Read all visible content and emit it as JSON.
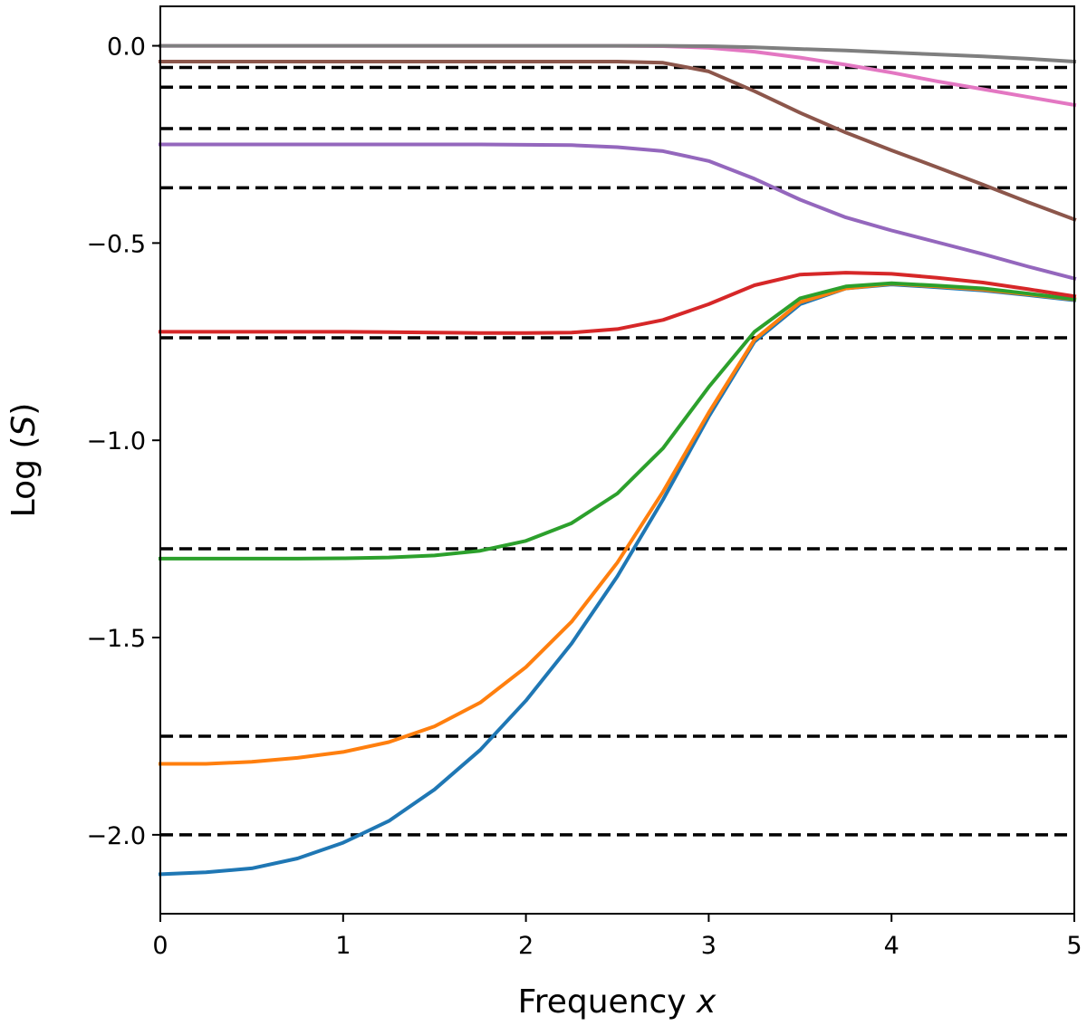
{
  "chart_data": {
    "type": "line",
    "title": "",
    "xlabel": {
      "text": "Frequency ",
      "var": "x"
    },
    "ylabel": {
      "text": "Log (",
      "var": "S",
      "close": ")"
    },
    "xlim": [
      0,
      5
    ],
    "ylim": [
      -2.2,
      0.1
    ],
    "xticks": [
      0,
      1,
      2,
      3,
      4,
      5
    ],
    "xtick_labels": [
      "0",
      "1",
      "2",
      "3",
      "4",
      "5"
    ],
    "yticks": [
      0.0,
      -0.5,
      -1.0,
      -1.5,
      -2.0
    ],
    "ytick_labels": [
      "0.0",
      "−0.5",
      "−1.0",
      "−1.5",
      "−2.0"
    ],
    "grid": false,
    "x": [
      0,
      0.25,
      0.5,
      0.75,
      1.0,
      1.25,
      1.5,
      1.75,
      2.0,
      2.25,
      2.5,
      2.75,
      3.0,
      3.25,
      3.5,
      3.75,
      4.0,
      4.25,
      4.5,
      4.75,
      5.0
    ],
    "series": [
      {
        "name": "series-blue",
        "color": "#1f77b4",
        "values": [
          -2.1,
          -2.095,
          -2.085,
          -2.06,
          -2.02,
          -1.965,
          -1.885,
          -1.785,
          -1.66,
          -1.515,
          -1.345,
          -1.15,
          -0.94,
          -0.75,
          -0.655,
          -0.615,
          -0.605,
          -0.612,
          -0.62,
          -0.632,
          -0.645
        ]
      },
      {
        "name": "series-orange",
        "color": "#ff7f0e",
        "values": [
          -1.82,
          -1.82,
          -1.815,
          -1.805,
          -1.79,
          -1.765,
          -1.725,
          -1.665,
          -1.575,
          -1.46,
          -1.31,
          -1.13,
          -0.93,
          -0.745,
          -0.65,
          -0.615,
          -0.603,
          -0.61,
          -0.618,
          -0.63,
          -0.643
        ]
      },
      {
        "name": "series-green",
        "color": "#2ca02c",
        "values": [
          -1.3,
          -1.3,
          -1.3,
          -1.3,
          -1.299,
          -1.297,
          -1.292,
          -1.28,
          -1.255,
          -1.21,
          -1.135,
          -1.02,
          -0.865,
          -0.725,
          -0.64,
          -0.61,
          -0.602,
          -0.608,
          -0.615,
          -0.628,
          -0.642
        ]
      },
      {
        "name": "series-red",
        "color": "#d62728",
        "values": [
          -0.725,
          -0.725,
          -0.725,
          -0.725,
          -0.725,
          -0.726,
          -0.727,
          -0.728,
          -0.728,
          -0.727,
          -0.718,
          -0.695,
          -0.655,
          -0.607,
          -0.58,
          -0.575,
          -0.578,
          -0.588,
          -0.6,
          -0.617,
          -0.635
        ]
      },
      {
        "name": "series-purple",
        "color": "#9467bd",
        "values": [
          -0.25,
          -0.25,
          -0.25,
          -0.25,
          -0.25,
          -0.25,
          -0.25,
          -0.25,
          -0.251,
          -0.252,
          -0.257,
          -0.267,
          -0.292,
          -0.337,
          -0.39,
          -0.435,
          -0.468,
          -0.498,
          -0.528,
          -0.56,
          -0.59
        ]
      },
      {
        "name": "series-brown",
        "color": "#8c564b",
        "values": [
          -0.04,
          -0.04,
          -0.04,
          -0.04,
          -0.04,
          -0.04,
          -0.04,
          -0.04,
          -0.04,
          -0.04,
          -0.04,
          -0.043,
          -0.065,
          -0.115,
          -0.17,
          -0.22,
          -0.265,
          -0.308,
          -0.352,
          -0.397,
          -0.44
        ]
      },
      {
        "name": "series-pink",
        "color": "#e377c2",
        "values": [
          0.0,
          0.0,
          0.0,
          0.0,
          0.0,
          0.0,
          0.0,
          0.0,
          0.0,
          0.0,
          0.0,
          -0.001,
          -0.005,
          -0.015,
          -0.03,
          -0.048,
          -0.068,
          -0.09,
          -0.11,
          -0.13,
          -0.15
        ]
      },
      {
        "name": "series-gray",
        "color": "#7f7f7f",
        "values": [
          0.0,
          0.0,
          0.0,
          0.0,
          0.0,
          0.0,
          0.0,
          0.0,
          0.0,
          0.0,
          0.0,
          0.0,
          -0.001,
          -0.004,
          -0.008,
          -0.012,
          -0.017,
          -0.022,
          -0.027,
          -0.033,
          -0.04
        ]
      }
    ],
    "reference_lines": {
      "style": "dashed",
      "color": "#000000",
      "y": [
        -0.055,
        -0.105,
        -0.21,
        -0.36,
        -0.74,
        -1.275,
        -1.75,
        -2.0
      ]
    }
  }
}
